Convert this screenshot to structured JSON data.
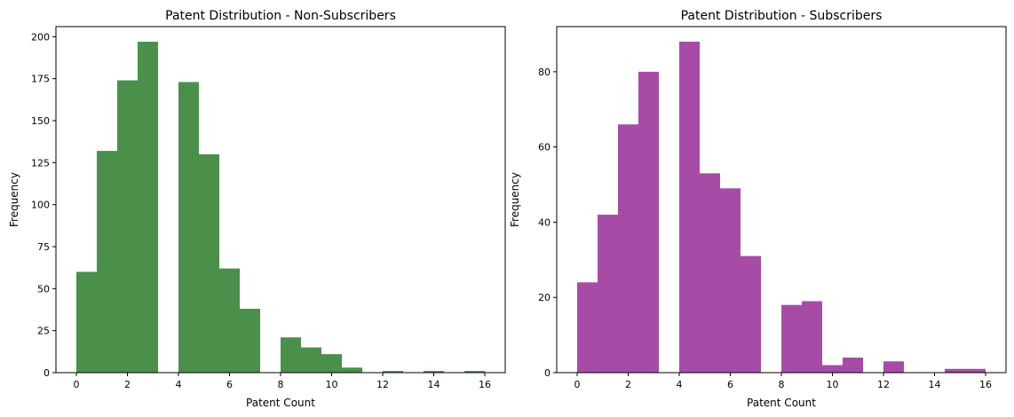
{
  "chart_data": [
    {
      "type": "bar",
      "title": "Patent Distribution - Non-Subscribers",
      "xlabel": "Patent Count",
      "ylabel": "Frequency",
      "color": "#4a8f4a",
      "xlim": [
        -0.8,
        16.8
      ],
      "ylim": [
        0,
        206
      ],
      "xticks": [
        0,
        2,
        4,
        6,
        8,
        10,
        12,
        14,
        16
      ],
      "yticks": [
        0,
        25,
        50,
        75,
        100,
        125,
        150,
        175,
        200
      ],
      "bin_edges": [
        0,
        0.8,
        1.6,
        2.4,
        3.2,
        4.0,
        4.8,
        5.6,
        6.4,
        7.2,
        8.0,
        8.8,
        9.6,
        10.4,
        11.2,
        12.0,
        12.8,
        13.6,
        14.4,
        15.2,
        16.0
      ],
      "values": [
        60,
        132,
        174,
        197,
        0,
        173,
        130,
        62,
        38,
        0,
        21,
        15,
        11,
        3,
        0,
        1,
        0,
        1,
        0,
        1
      ],
      "grid": false,
      "legend": "none"
    },
    {
      "type": "bar",
      "title": "Patent Distribution - Subscribers",
      "xlabel": "Patent Count",
      "ylabel": "Frequency",
      "color": "#a64ca6",
      "xlim": [
        -0.8,
        16.8
      ],
      "ylim": [
        0,
        92
      ],
      "xticks": [
        0,
        2,
        4,
        6,
        8,
        10,
        12,
        14,
        16
      ],
      "yticks": [
        0,
        20,
        40,
        60,
        80
      ],
      "bin_edges": [
        0,
        0.8,
        1.6,
        2.4,
        3.2,
        4.0,
        4.8,
        5.6,
        6.4,
        7.2,
        8.0,
        8.8,
        9.6,
        10.4,
        11.2,
        12.0,
        12.8,
        13.6,
        14.4,
        15.2,
        16.0
      ],
      "values": [
        24,
        42,
        66,
        80,
        0,
        88,
        53,
        49,
        31,
        0,
        18,
        19,
        2,
        4,
        0,
        3,
        0,
        0,
        1,
        1
      ],
      "grid": false,
      "legend": "none"
    }
  ]
}
